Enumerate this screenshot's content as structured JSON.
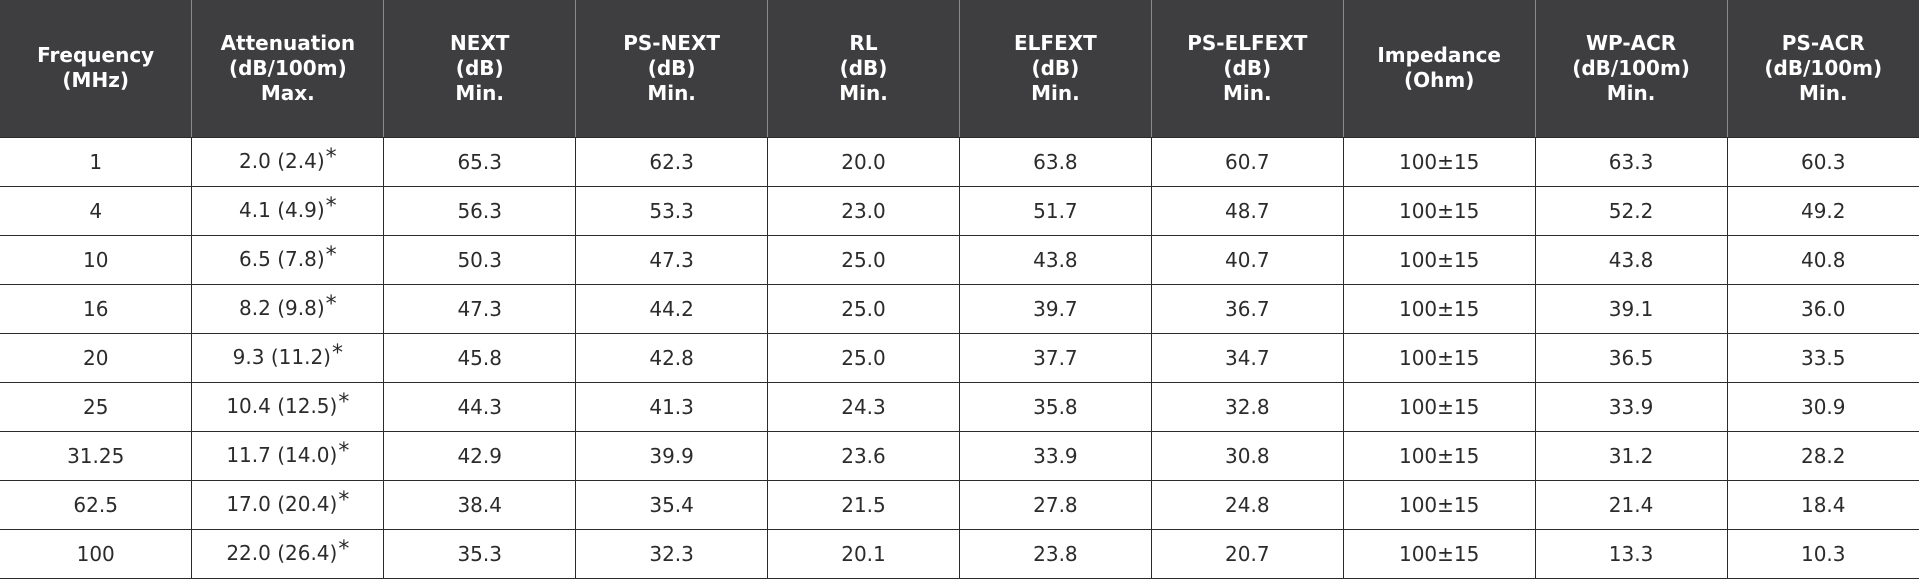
{
  "table": {
    "headers": [
      [
        "Frequency",
        "(MHz)"
      ],
      [
        "Attenuation",
        "(dB/100m)",
        "Max."
      ],
      [
        "NEXT",
        "(dB)",
        "Min."
      ],
      [
        "PS-NEXT",
        "(dB)",
        "Min."
      ],
      [
        "RL",
        "(dB)",
        "Min."
      ],
      [
        "ELFEXT",
        "(dB)",
        "Min."
      ],
      [
        "PS-ELFEXT",
        "(dB)",
        "Min."
      ],
      [
        "Impedance",
        "(Ohm)"
      ],
      [
        "WP-ACR",
        "(dB/100m)",
        "Min."
      ],
      [
        "PS-ACR",
        "(dB/100m)",
        "Min."
      ]
    ],
    "asterisk": "*",
    "rows": [
      {
        "freq": "1",
        "atten": "2.0 (2.4)",
        "next": "65.3",
        "psnext": "62.3",
        "rl": "20.0",
        "elfext": "63.8",
        "pselfext": "60.7",
        "imp": "100±15",
        "wpacr": "63.3",
        "psacr": "60.3"
      },
      {
        "freq": "4",
        "atten": "4.1 (4.9)",
        "next": "56.3",
        "psnext": "53.3",
        "rl": "23.0",
        "elfext": "51.7",
        "pselfext": "48.7",
        "imp": "100±15",
        "wpacr": "52.2",
        "psacr": "49.2"
      },
      {
        "freq": "10",
        "atten": "6.5 (7.8)",
        "next": "50.3",
        "psnext": "47.3",
        "rl": "25.0",
        "elfext": "43.8",
        "pselfext": "40.7",
        "imp": "100±15",
        "wpacr": "43.8",
        "psacr": "40.8"
      },
      {
        "freq": "16",
        "atten": "8.2 (9.8)",
        "next": "47.3",
        "psnext": "44.2",
        "rl": "25.0",
        "elfext": "39.7",
        "pselfext": "36.7",
        "imp": "100±15",
        "wpacr": "39.1",
        "psacr": "36.0"
      },
      {
        "freq": "20",
        "atten": "9.3 (11.2)",
        "next": "45.8",
        "psnext": "42.8",
        "rl": "25.0",
        "elfext": "37.7",
        "pselfext": "34.7",
        "imp": "100±15",
        "wpacr": "36.5",
        "psacr": "33.5"
      },
      {
        "freq": "25",
        "atten": "10.4 (12.5)",
        "next": "44.3",
        "psnext": "41.3",
        "rl": "24.3",
        "elfext": "35.8",
        "pselfext": "32.8",
        "imp": "100±15",
        "wpacr": "33.9",
        "psacr": "30.9"
      },
      {
        "freq": "31.25",
        "atten": "11.7 (14.0)",
        "next": "42.9",
        "psnext": "39.9",
        "rl": "23.6",
        "elfext": "33.9",
        "pselfext": "30.8",
        "imp": "100±15",
        "wpacr": "31.2",
        "psacr": "28.2"
      },
      {
        "freq": "62.5",
        "atten": "17.0 (20.4)",
        "next": "38.4",
        "psnext": "35.4",
        "rl": "21.5",
        "elfext": "27.8",
        "pselfext": "24.8",
        "imp": "100±15",
        "wpacr": "21.4",
        "psacr": "18.4"
      },
      {
        "freq": "100",
        "atten": "22.0 (26.4)",
        "next": "35.3",
        "psnext": "32.3",
        "rl": "20.1",
        "elfext": "23.8",
        "pselfext": "20.7",
        "imp": "100±15",
        "wpacr": "13.3",
        "psacr": "10.3"
      }
    ]
  }
}
